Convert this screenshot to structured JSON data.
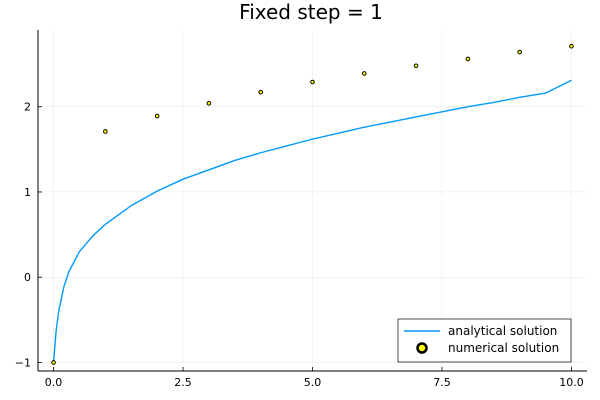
{
  "chart_data": {
    "type": "line",
    "title": "Fixed step = 1",
    "xlabel": "",
    "ylabel": "",
    "xlim": [
      -0.3,
      10.3
    ],
    "ylim": [
      -1.1,
      2.9
    ],
    "x_ticks": [
      0,
      2.5,
      5,
      7.5,
      10
    ],
    "x_tick_labels": [
      "0.0",
      "2.5",
      "5.0",
      "7.5",
      "10.0"
    ],
    "y_ticks": [
      -1,
      0,
      1,
      2
    ],
    "y_tick_labels": [
      "−1",
      "0",
      "1",
      "2"
    ],
    "grid": true,
    "legend_position": "bottom-right",
    "series": [
      {
        "name": "analytical solution",
        "kind": "line",
        "color": "#009AFA",
        "x": [
          0,
          0.05,
          0.1,
          0.2,
          0.3,
          0.5,
          0.75,
          1,
          1.5,
          2,
          2.5,
          3,
          3.5,
          4,
          4.5,
          5,
          5.5,
          6,
          6.5,
          7,
          7.5,
          8,
          8.5,
          9,
          9.5,
          10
        ],
        "y": [
          -1.0,
          -0.63,
          -0.4,
          -0.11,
          0.07,
          0.3,
          0.48,
          0.62,
          0.84,
          1.01,
          1.15,
          1.26,
          1.37,
          1.46,
          1.54,
          1.62,
          1.69,
          1.76,
          1.82,
          1.88,
          1.94,
          2.0,
          2.05,
          2.11,
          2.16,
          2.31
        ]
      },
      {
        "name": "numerical solution",
        "kind": "scatter",
        "color": "#FFFF00",
        "edge_color": "#000000",
        "x": [
          0,
          1,
          2,
          3,
          4,
          5,
          6,
          7,
          8,
          9,
          10
        ],
        "y": [
          -1.0,
          1.71,
          1.89,
          2.04,
          2.17,
          2.29,
          2.39,
          2.48,
          2.56,
          2.64,
          2.71
        ]
      }
    ]
  }
}
